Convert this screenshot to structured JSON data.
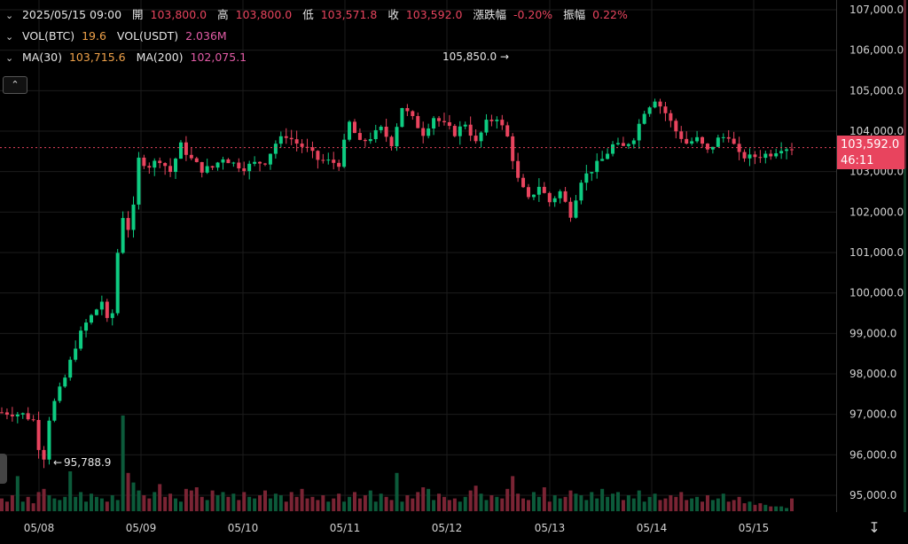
{
  "legend": {
    "row1": {
      "datetime": "2025/05/15 09:00",
      "open_label": "開",
      "open_value": "103,800.0",
      "high_label": "高",
      "high_value": "103,800.0",
      "low_label": "低",
      "low_value": "103,571.8",
      "close_label": "收",
      "close_value": "103,592.0",
      "change_label": "漲跌幅",
      "change_value": "-0.20%",
      "amplitude_label": "振幅",
      "amplitude_value": "0.22%"
    },
    "row2": {
      "vol_btc_label": "VOL(BTC)",
      "vol_btc_value": "19.6",
      "vol_usdt_label": "VOL(USDT)",
      "vol_usdt_value": "2.036M"
    },
    "row3": {
      "ma30_label": "MA(30)",
      "ma30_value": "103,715.6",
      "ma200_label": "MA(200)",
      "ma200_value": "102,075.1"
    }
  },
  "annotations": {
    "high_marker": "105,850.0",
    "low_marker": "95,788.9"
  },
  "price_tag": {
    "price": "103,592.0",
    "countdown": "46:11"
  },
  "icons": {
    "collapse": "chevron-up-icon",
    "legend_toggle": "chevron-down-icon",
    "time_reset": "time-reset-icon"
  },
  "colors": {
    "up": "#0ecb81",
    "down": "#e8445e",
    "ma30": "#f0a24a",
    "ma200": "#e25ca6"
  },
  "chart_data": {
    "type": "candlestick",
    "title": "",
    "xlabel": "",
    "ylabel": "",
    "yaxis_ticks": [
      "107,000.0",
      "106,000.0",
      "105,000.0",
      "104,000.0",
      "103,000.0",
      "102,000.0",
      "101,000.0",
      "100,000.0",
      "99,000.0",
      "98,000.0",
      "97,000.0",
      "96,000.0",
      "95,000.0"
    ],
    "xaxis_ticks": [
      "05/08",
      "05/09",
      "05/10",
      "05/11",
      "05/12",
      "05/13",
      "05/14",
      "05/15"
    ],
    "ylim": [
      94800,
      107200
    ],
    "current_price": 103592.0,
    "series_close_path": [
      [
        0,
        97050
      ],
      [
        4,
        97000
      ],
      [
        6,
        96850
      ],
      [
        7,
        96200
      ],
      [
        8,
        95950
      ],
      [
        9,
        96900
      ],
      [
        10,
        97300
      ],
      [
        12,
        97900
      ],
      [
        14,
        98700
      ],
      [
        15,
        99000
      ],
      [
        16,
        99250
      ],
      [
        18,
        99600
      ],
      [
        19,
        99800
      ],
      [
        20,
        99300
      ],
      [
        21,
        99500
      ],
      [
        22,
        101000
      ],
      [
        23,
        101900
      ],
      [
        24,
        101600
      ],
      [
        25,
        102100
      ],
      [
        26,
        103300
      ],
      [
        28,
        103150
      ],
      [
        30,
        103300
      ],
      [
        32,
        103000
      ],
      [
        34,
        103650
      ],
      [
        36,
        103300
      ],
      [
        38,
        103050
      ],
      [
        40,
        103100
      ],
      [
        42,
        103350
      ],
      [
        44,
        103200
      ],
      [
        46,
        103100
      ],
      [
        48,
        103200
      ],
      [
        50,
        103250
      ],
      [
        52,
        103700
      ],
      [
        54,
        103900
      ],
      [
        56,
        103700
      ],
      [
        58,
        103550
      ],
      [
        60,
        103300
      ],
      [
        62,
        103250
      ],
      [
        64,
        103200
      ],
      [
        66,
        104200
      ],
      [
        68,
        103700
      ],
      [
        70,
        103850
      ],
      [
        72,
        104050
      ],
      [
        74,
        103700
      ],
      [
        76,
        104600
      ],
      [
        78,
        104300
      ],
      [
        80,
        103950
      ],
      [
        82,
        104350
      ],
      [
        84,
        104150
      ],
      [
        86,
        103950
      ],
      [
        88,
        104200
      ],
      [
        90,
        103700
      ],
      [
        92,
        104200
      ],
      [
        94,
        104350
      ],
      [
        96,
        103850
      ],
      [
        98,
        102800
      ],
      [
        100,
        102300
      ],
      [
        102,
        102650
      ],
      [
        104,
        102250
      ],
      [
        106,
        102500
      ],
      [
        108,
        101950
      ],
      [
        110,
        102800
      ],
      [
        112,
        103050
      ],
      [
        114,
        103300
      ],
      [
        116,
        103650
      ],
      [
        118,
        103600
      ],
      [
        120,
        103850
      ],
      [
        122,
        104500
      ],
      [
        124,
        104800
      ],
      [
        126,
        104450
      ],
      [
        128,
        104000
      ],
      [
        130,
        103700
      ],
      [
        132,
        103800
      ],
      [
        134,
        103500
      ],
      [
        136,
        103800
      ],
      [
        138,
        103900
      ],
      [
        140,
        103400
      ],
      [
        142,
        103350
      ],
      [
        144,
        103400
      ],
      [
        146,
        103450
      ],
      [
        148,
        103600
      ],
      [
        150,
        103592
      ]
    ],
    "volume_path": [
      8,
      6,
      10,
      22,
      6,
      9,
      5,
      12,
      14,
      10,
      8,
      7,
      9,
      25,
      9,
      12,
      6,
      11,
      9,
      8,
      6,
      10,
      7,
      60,
      24,
      18,
      13,
      10,
      8,
      12,
      17,
      9,
      11,
      8,
      6,
      14,
      13,
      15,
      9,
      7,
      13,
      10,
      12,
      9,
      11,
      7,
      12,
      9,
      8,
      10,
      13,
      8,
      11,
      10,
      6,
      12,
      9,
      14,
      8,
      9,
      7,
      10,
      6,
      8,
      11,
      6,
      9,
      12,
      8,
      10,
      13,
      6,
      11,
      9,
      7,
      24,
      6,
      10,
      8,
      12,
      15,
      14,
      7,
      11,
      9,
      7,
      8,
      6,
      9,
      13,
      16,
      11,
      7,
      10,
      9,
      8,
      14,
      22,
      11,
      8,
      7,
      12,
      9,
      15,
      6,
      10,
      8,
      9,
      13,
      11,
      10,
      7,
      12,
      8,
      14,
      9,
      11,
      12,
      7,
      10,
      8,
      13,
      6,
      9,
      11,
      7,
      8,
      10,
      9,
      12,
      7,
      8,
      9,
      6,
      10,
      7,
      8,
      11,
      6,
      7,
      9,
      5,
      6,
      4,
      5,
      4,
      3,
      3,
      3,
      2
    ]
  }
}
